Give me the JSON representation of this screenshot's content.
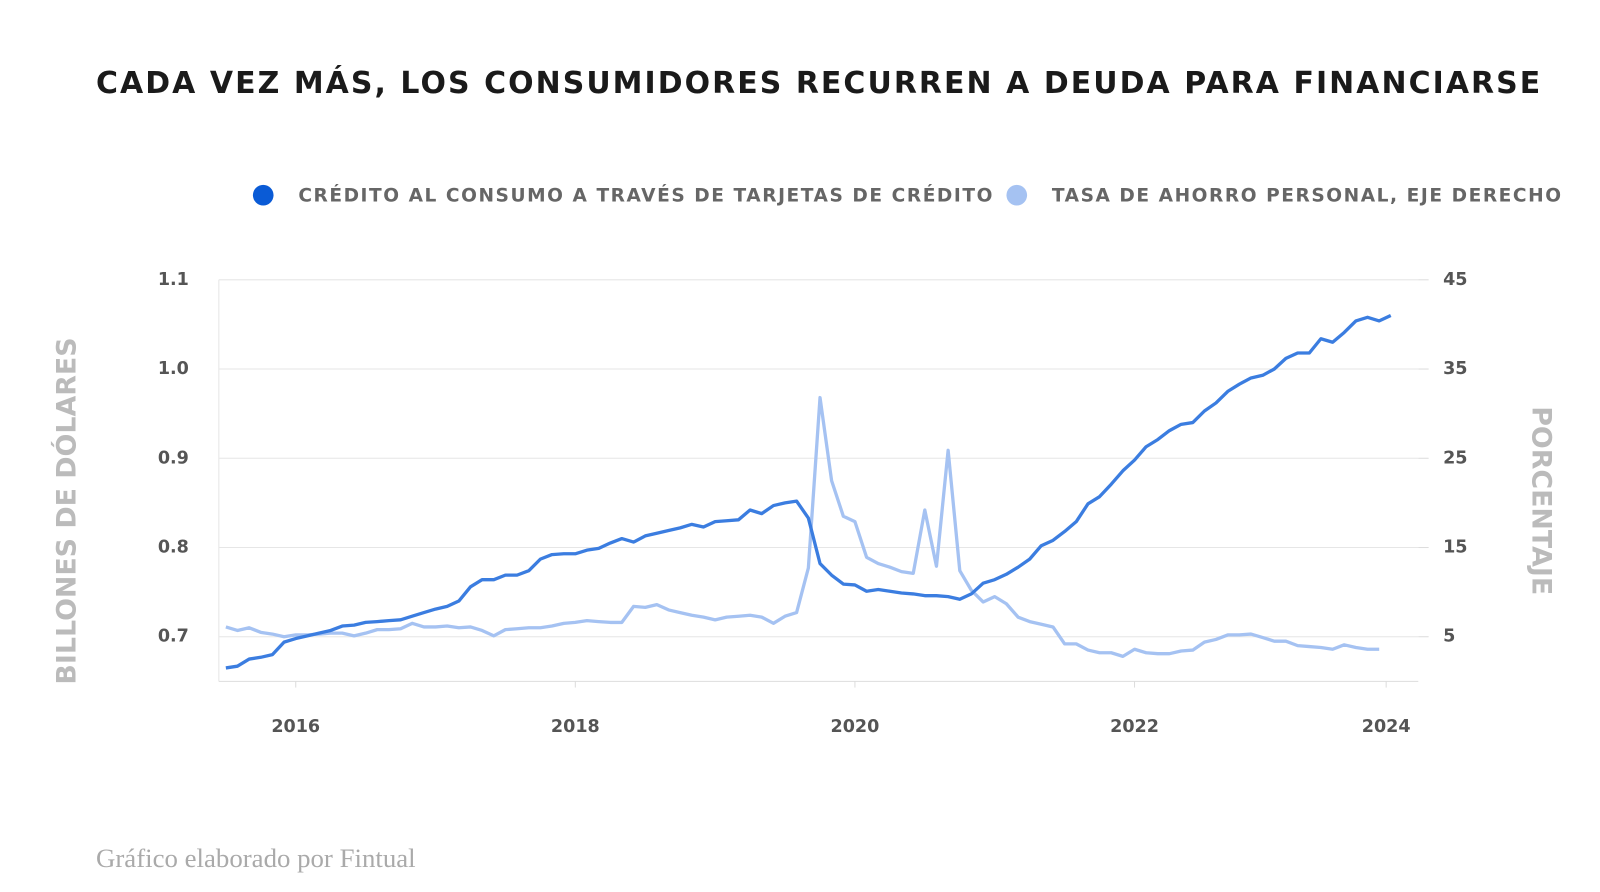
{
  "chart_data": {
    "type": "line",
    "title": "CADA VEZ MÁS, LOS CONSUMIDORES RECURREN A DEUDA PARA FINANCIARSE",
    "footer": "Gráfico elaborado por Fintual",
    "ylabel": "BILLONES DE DÓLARES",
    "y2label": "PORCENTAJE",
    "xlim": [
      2015.95,
      2024.53
    ],
    "xticks": [
      {
        "value": 2016.5,
        "label": "2016"
      },
      {
        "value": 2018.5,
        "label": "2018"
      },
      {
        "value": 2020.5,
        "label": "2020"
      },
      {
        "value": 2022.5,
        "label": "2022"
      },
      {
        "value": 2024.3,
        "label": "2024"
      }
    ],
    "ylim": [
      0.65,
      1.1
    ],
    "yticks": [
      0.7,
      0.8,
      0.9,
      {
        "value": 1.0,
        "label": "1.0"
      },
      1.1
    ],
    "y2lim": [
      0,
      45
    ],
    "y2ticks": [
      5,
      15,
      25,
      35,
      45
    ],
    "grid": true,
    "x": [
      2016.0,
      2016.083,
      2016.167,
      2016.25,
      2016.333,
      2016.417,
      2016.5,
      2016.583,
      2016.667,
      2016.75,
      2016.833,
      2016.917,
      2017.0,
      2017.083,
      2017.167,
      2017.25,
      2017.333,
      2017.417,
      2017.5,
      2017.583,
      2017.667,
      2017.75,
      2017.833,
      2017.917,
      2018.0,
      2018.083,
      2018.167,
      2018.25,
      2018.333,
      2018.417,
      2018.5,
      2018.583,
      2018.667,
      2018.75,
      2018.833,
      2018.917,
      2019.0,
      2019.083,
      2019.167,
      2019.25,
      2019.333,
      2019.417,
      2019.5,
      2019.583,
      2019.667,
      2019.75,
      2019.833,
      2019.917,
      2020.0,
      2020.083,
      2020.167,
      2020.25,
      2020.333,
      2020.417,
      2020.5,
      2020.583,
      2020.667,
      2020.75,
      2020.833,
      2020.917,
      2021.0,
      2021.083,
      2021.167,
      2021.25,
      2021.333,
      2021.417,
      2021.5,
      2021.583,
      2021.667,
      2021.75,
      2021.833,
      2021.917,
      2022.0,
      2022.083,
      2022.167,
      2022.25,
      2022.333,
      2022.417,
      2022.5,
      2022.583,
      2022.667,
      2022.75,
      2022.833,
      2022.917,
      2023.0,
      2023.083,
      2023.167,
      2023.25,
      2023.333,
      2023.417,
      2023.5,
      2023.583,
      2023.667,
      2023.75,
      2023.833,
      2023.917,
      2024.0,
      2024.083,
      2024.167,
      2024.25,
      2024.333
    ],
    "series": [
      {
        "name": "CRÉDITO AL CONSUMO A TRAVÉS DE TARJETAS DE CRÉDITO",
        "color": "#3b7de0",
        "values": [
          0.665,
          0.667,
          0.675,
          0.677,
          0.68,
          0.694,
          0.698,
          0.701,
          0.704,
          0.707,
          0.712,
          0.713,
          0.716,
          0.717,
          0.718,
          0.719,
          0.723,
          0.727,
          0.731,
          0.734,
          0.74,
          0.756,
          0.764,
          0.764,
          0.769,
          0.769,
          0.774,
          0.787,
          0.792,
          0.793,
          0.793,
          0.797,
          0.799,
          0.805,
          0.81,
          0.806,
          0.813,
          0.816,
          0.819,
          0.822,
          0.826,
          0.823,
          0.829,
          0.83,
          0.831,
          0.842,
          0.838,
          0.847,
          0.85,
          0.852,
          0.833,
          0.782,
          0.769,
          0.759,
          0.758,
          0.751,
          0.753,
          0.751,
          0.749,
          0.748,
          0.746,
          0.746,
          0.745,
          0.742,
          0.748,
          0.76,
          0.764,
          0.77,
          0.778,
          0.787,
          0.802,
          0.808,
          0.818,
          0.829,
          0.849,
          0.857,
          0.871,
          0.886,
          0.898,
          0.913,
          0.921,
          0.931,
          0.938,
          0.94,
          0.953,
          0.962,
          0.975,
          0.983,
          0.99,
          0.993,
          1.0,
          1.012,
          1.018,
          1.018,
          1.034,
          1.03,
          1.041,
          1.054,
          1.058,
          1.054,
          1.06
        ]
      },
      {
        "name": "TASA DE AHORRO PERSONAL, EJE DERECHO",
        "color": "#a5c2f2",
        "axis": "y2",
        "values": [
          6.1,
          5.7,
          6.0,
          5.5,
          5.3,
          5.0,
          5.2,
          5.2,
          5.3,
          5.4,
          5.4,
          5.1,
          5.4,
          5.8,
          5.8,
          5.9,
          6.5,
          6.1,
          6.1,
          6.2,
          6.0,
          6.1,
          5.7,
          5.1,
          5.8,
          5.9,
          6.0,
          6.0,
          6.2,
          6.5,
          6.6,
          6.8,
          6.7,
          6.6,
          6.6,
          8.4,
          8.3,
          8.6,
          8.0,
          7.7,
          7.4,
          7.2,
          6.9,
          7.2,
          7.3,
          7.4,
          7.2,
          6.5,
          7.3,
          7.7,
          12.7,
          31.8,
          22.5,
          18.5,
          17.9,
          13.9,
          13.2,
          12.8,
          12.3,
          12.1,
          19.2,
          12.9,
          25.9,
          12.4,
          10.2,
          8.9,
          9.5,
          8.7,
          7.2,
          6.7,
          6.4,
          6.1,
          4.2,
          4.2,
          3.5,
          3.2,
          3.2,
          2.8,
          3.6,
          3.2,
          3.1,
          3.1,
          3.4,
          3.5,
          4.4,
          4.7,
          5.2,
          5.2,
          5.3,
          4.9,
          4.5,
          4.5,
          4.0,
          3.9,
          3.8,
          3.6,
          4.1,
          3.8,
          3.6,
          3.6,
          null
        ]
      }
    ]
  }
}
